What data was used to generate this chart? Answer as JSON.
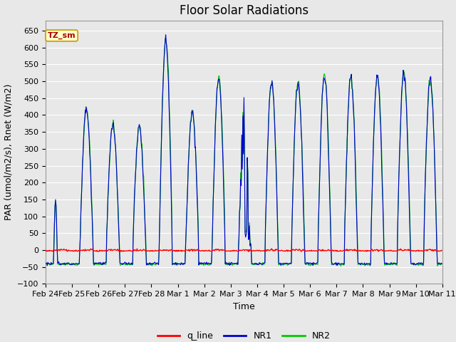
{
  "title": "Floor Solar Radiations",
  "xlabel": "Time",
  "ylabel": "PAR (umol/m2/s), Rnet (W/m2)",
  "ylim": [
    -100,
    680
  ],
  "yticks": [
    -100,
    -50,
    0,
    50,
    100,
    150,
    200,
    250,
    300,
    350,
    400,
    450,
    500,
    550,
    600,
    650
  ],
  "legend_labels": [
    "q_line",
    "NR1",
    "NR2"
  ],
  "line_colors": {
    "q_line": "#ff0000",
    "NR1": "#0000cc",
    "NR2": "#00cc00"
  },
  "annotation_text": "TZ_sm",
  "annotation_color": "#aa0000",
  "annotation_bg": "#ffffcc",
  "annotation_border": "#cc9900",
  "background_color": "#e8e8e8",
  "grid_color": "#ffffff",
  "title_fontsize": 12,
  "axes_fontsize": 9,
  "tick_fontsize": 8,
  "date_labels": [
    "Feb 24",
    "Feb 25",
    "Feb 26",
    "Feb 27",
    "Feb 28",
    "Mar 1",
    "Mar 2",
    "Mar 3",
    "Mar 4",
    "Mar 5",
    "Mar 6",
    "Mar 7",
    "Mar 8",
    "Mar 9",
    "Mar 10",
    "Mar 11"
  ],
  "n_days": 15
}
